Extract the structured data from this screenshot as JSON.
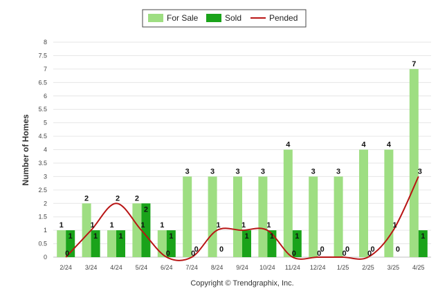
{
  "chart_data": {
    "type": "bar",
    "categories": [
      "2/24",
      "3/24",
      "4/24",
      "5/24",
      "6/24",
      "7/24",
      "8/24",
      "9/24",
      "10/24",
      "11/24",
      "12/24",
      "1/25",
      "2/25",
      "3/25",
      "4/25"
    ],
    "series": [
      {
        "name": "For Sale",
        "kind": "bar",
        "color": "#9ede82",
        "values": [
          1,
          2,
          1,
          2,
          1,
          3,
          3,
          3,
          3,
          4,
          3,
          3,
          4,
          4,
          7
        ]
      },
      {
        "name": "Sold",
        "kind": "bar",
        "color": "#1aa31a",
        "values": [
          1,
          1,
          1,
          2,
          1,
          0,
          0,
          1,
          1,
          1,
          0,
          0,
          0,
          0,
          1
        ]
      },
      {
        "name": "Pended",
        "kind": "line",
        "color": "#b81414",
        "values": [
          0,
          1,
          2,
          1,
          0,
          0,
          1,
          1,
          1,
          0,
          0,
          0,
          0,
          1,
          3
        ]
      }
    ],
    "ylabel": "Number of Homes",
    "xlabel": "",
    "ylim": [
      0,
      8
    ],
    "yticks": [
      "0",
      "0.5",
      "1",
      "1.5",
      "2",
      "2.5",
      "3",
      "3.5",
      "4",
      "4.5",
      "5",
      "5.5",
      "6",
      "6.5",
      "7",
      "7.5",
      "8"
    ],
    "grid": true,
    "legend": "top-center",
    "copyright": "Copyright © Trendgraphix, Inc."
  }
}
